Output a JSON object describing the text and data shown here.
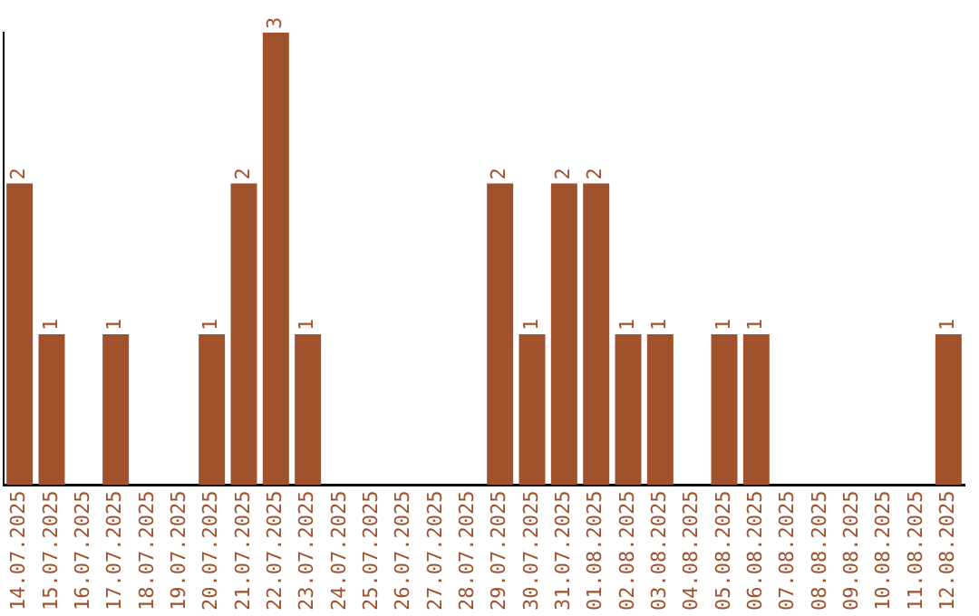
{
  "chart_data": {
    "type": "bar",
    "categories": [
      "14.07.2025",
      "15.07.2025",
      "16.07.2025",
      "17.07.2025",
      "18.07.2025",
      "19.07.2025",
      "20.07.2025",
      "21.07.2025",
      "22.07.2025",
      "23.07.2025",
      "24.07.2025",
      "25.07.2025",
      "26.07.2025",
      "27.07.2025",
      "28.07.2025",
      "29.07.2025",
      "30.07.2025",
      "31.07.2025",
      "01.08.2025",
      "02.08.2025",
      "03.08.2025",
      "04.08.2025",
      "05.08.2025",
      "06.08.2025",
      "07.08.2025",
      "08.08.2025",
      "09.08.2025",
      "10.08.2025",
      "11.08.2025",
      "12.08.2025"
    ],
    "values": [
      2,
      1,
      0,
      1,
      0,
      0,
      1,
      2,
      3,
      1,
      0,
      0,
      0,
      0,
      0,
      2,
      1,
      2,
      2,
      1,
      1,
      0,
      1,
      1,
      0,
      0,
      0,
      0,
      0,
      1
    ],
    "value_labels": [
      "2",
      "1",
      null,
      "1",
      null,
      null,
      "1",
      "2",
      "3",
      "1",
      null,
      null,
      null,
      null,
      null,
      "2",
      "1",
      "2",
      "2",
      "1",
      "1",
      null,
      "1",
      "1",
      null,
      null,
      null,
      null,
      null,
      "1"
    ],
    "color": "#a0522d",
    "tick_labels": "x",
    "grid": false,
    "legend": false
  }
}
